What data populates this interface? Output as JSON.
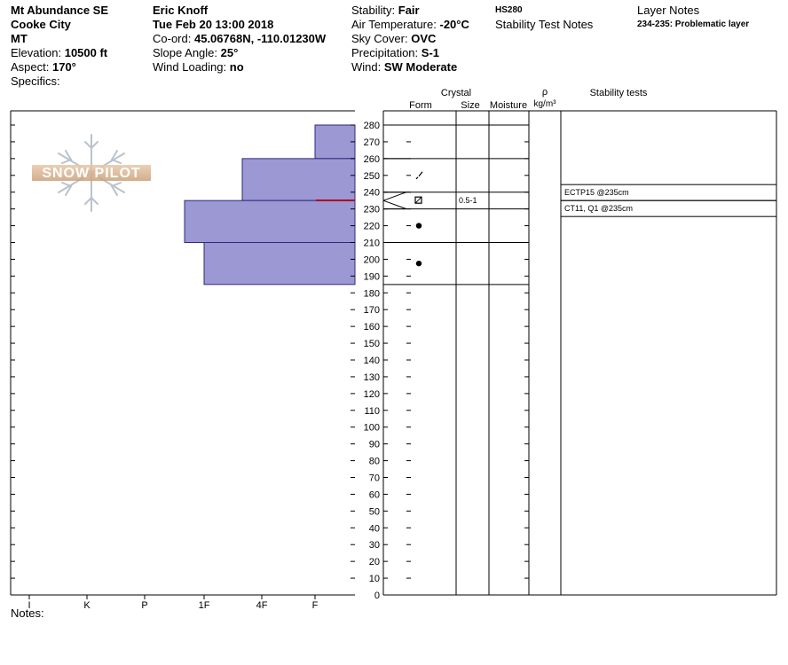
{
  "header": {
    "location": "Mt Abundance SE",
    "area": "Cooke City",
    "state": "MT",
    "elevation_label": "Elevation:",
    "elevation": "10500 ft",
    "aspect_label": "Aspect:",
    "aspect": "170°",
    "specifics_label": "Specifics:",
    "observer": "Eric Knoff",
    "datetime": "Tue Feb 20 13:00 2018",
    "coord_label": "Co-ord:",
    "coord": "45.06768N, -110.01230W",
    "slope_label": "Slope Angle:",
    "slope": "25°",
    "wind_loading_label": "Wind Loading:",
    "wind_loading": "no",
    "stability_label": "Stability:",
    "stability": "Fair",
    "air_temp_label": "Air Temperature:",
    "air_temp": "-20°C",
    "sky_label": "Sky Cover:",
    "sky": "OVC",
    "precip_label": "Precipitation:",
    "precip": "S-1",
    "wind_label": "Wind:",
    "wind": "SW Moderate",
    "hs": "HS280",
    "stability_notes_label": "Stability Test Notes",
    "layer_notes_label": "Layer Notes",
    "layer_note": "234-235: Problematic layer"
  },
  "logo_text": "SNOW PILOT",
  "notes_label": "Notes:",
  "columns": {
    "crystal": "Crystal",
    "form": "Form",
    "size": "Size",
    "moisture": "Moisture",
    "rho": "ρ",
    "density_unit": "kg/m³",
    "stability_tests": "Stability tests"
  },
  "chart_data": {
    "type": "snow-profile",
    "depth_axis": {
      "min": 0,
      "max": 280,
      "step": 10
    },
    "hardness_scale": [
      "I",
      "K",
      "P",
      "1F",
      "4F",
      "F"
    ],
    "hardness_profile": [
      {
        "top": 280,
        "bottom": 260,
        "hardness": "F"
      },
      {
        "top": 260,
        "bottom": 235,
        "hardness": "4F+"
      },
      {
        "top": 235,
        "bottom": 210,
        "hardness": "1F+"
      },
      {
        "top": 210,
        "bottom": 185,
        "hardness": "1F"
      }
    ],
    "layers": [
      {
        "top": 280,
        "bottom": 260,
        "form": "",
        "size": ""
      },
      {
        "top": 260,
        "bottom": 240,
        "form": "decomposing",
        "size": ""
      },
      {
        "top": 240,
        "bottom": 230,
        "form": "faceted",
        "size": "0.5-1"
      },
      {
        "top": 230,
        "bottom": 210,
        "form": "rounded",
        "size": ""
      },
      {
        "top": 210,
        "bottom": 185,
        "form": "rounded",
        "size": ""
      }
    ],
    "problem_layer": 235,
    "stability_tests": [
      {
        "text": "ECTP15 @235cm"
      },
      {
        "text": "CT11, Q1 @235cm"
      }
    ]
  }
}
